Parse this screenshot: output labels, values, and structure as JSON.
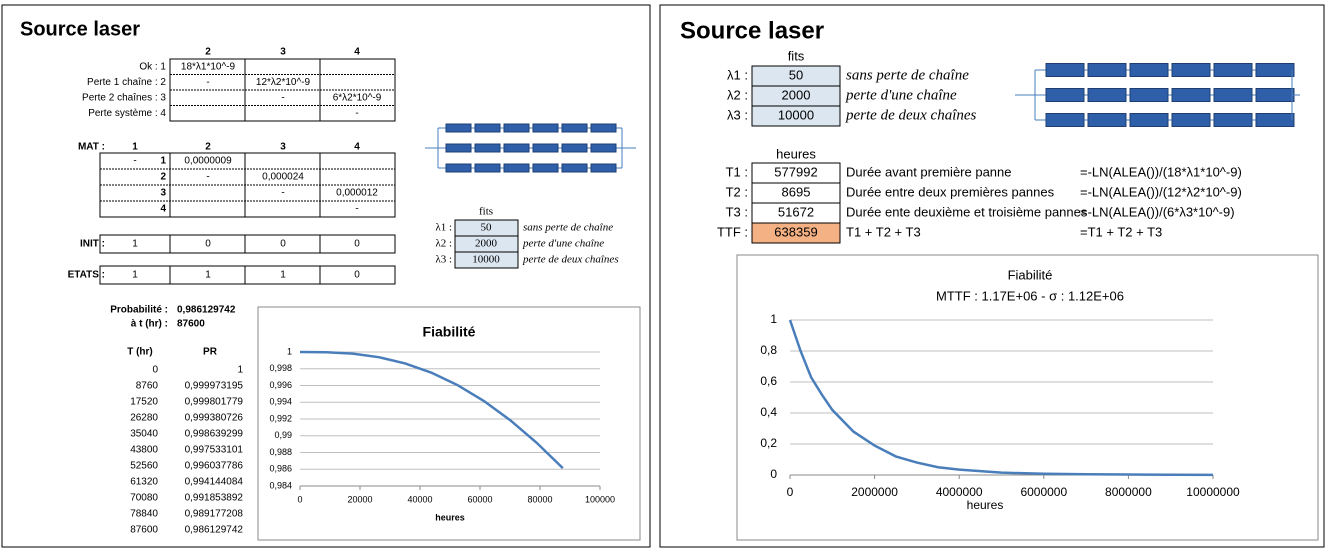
{
  "left": {
    "title": "Source laser",
    "transition": {
      "col_headers": [
        "2",
        "3",
        "4"
      ],
      "rows": [
        {
          "label": "Ok : 1",
          "2": "18*λ1*10^-9"
        },
        {
          "label": "Perte 1 chaîne : 2",
          "2": "-",
          "3": "12*λ2*10^-9"
        },
        {
          "label": "Perte 2 chaînes : 3",
          "3": "-",
          "4": "6*λ2*10^-9"
        },
        {
          "label": "Perte système : 4",
          "4": "-"
        }
      ]
    },
    "mat": {
      "label": "MAT :",
      "col_headers": [
        "1",
        "2",
        "3",
        "4"
      ],
      "rows": [
        {
          "label": "1",
          "1": "-",
          "2": "0,0000009"
        },
        {
          "label": "2",
          "2": "-",
          "3": "0,000024"
        },
        {
          "label": "3",
          "3": "-",
          "4": "0,000012"
        },
        {
          "label": "4",
          "4": "-"
        }
      ]
    },
    "init": {
      "label": "INIT :",
      "values": [
        1,
        0,
        0,
        0
      ]
    },
    "etats": {
      "label": "ETATS :",
      "values": [
        1,
        1,
        1,
        0
      ]
    },
    "fits": {
      "header": "fits",
      "rows": [
        {
          "label": "λ1 :",
          "value": 50,
          "desc": "sans perte de chaîne"
        },
        {
          "label": "λ2 :",
          "value": 2000,
          "desc": "perte d'une chaîne"
        },
        {
          "label": "λ3 :",
          "value": 10000,
          "desc": "perte de deux chaînes"
        }
      ]
    },
    "probability": {
      "label": "Probabilité :",
      "value": "0,986129742"
    },
    "time": {
      "label": "à t (hr) :",
      "value": 87600
    },
    "table": {
      "headers": [
        "T (hr)",
        "PR"
      ],
      "rows": [
        [
          0,
          1
        ],
        [
          8760,
          "0,999973195"
        ],
        [
          17520,
          "0,999801779"
        ],
        [
          26280,
          "0,999380726"
        ],
        [
          35040,
          "0,998639299"
        ],
        [
          43800,
          "0,997533101"
        ],
        [
          52560,
          "0,996037786"
        ],
        [
          61320,
          "0,994144084"
        ],
        [
          70080,
          "0,991853892"
        ],
        [
          78840,
          "0,989177208"
        ],
        [
          87600,
          "0,986129742"
        ]
      ]
    }
  },
  "right": {
    "title": "Source laser",
    "fits": {
      "header": "fits",
      "rows": [
        {
          "label": "λ1 :",
          "value": 50,
          "desc": "sans perte de chaîne"
        },
        {
          "label": "λ2 :",
          "value": 2000,
          "desc": "perte d'une chaîne"
        },
        {
          "label": "λ3 :",
          "value": 10000,
          "desc": "perte de deux chaînes"
        }
      ]
    },
    "hours": {
      "header": "heures",
      "rows": [
        {
          "label": "T1 :",
          "value": 577992,
          "desc": "Durée avant première panne",
          "formula": "=-LN(ALEA())/(18*λ1*10^-9)"
        },
        {
          "label": "T2 :",
          "value": 8695,
          "desc": "Durée entre deux premières pannes",
          "formula": "=-LN(ALEA())/(12*λ2*10^-9)"
        },
        {
          "label": "T3 :",
          "value": 51672,
          "desc": "Durée ente deuxième et troisième pannes",
          "formula": "=-LN(ALEA())/(6*λ3*10^-9)"
        },
        {
          "label": "TTF :",
          "value": 638359,
          "desc": "T1 + T2 + T3",
          "formula": "=T1 + T2 + T3"
        }
      ]
    }
  },
  "chart_data": [
    {
      "type": "line",
      "title": "Fiabilité",
      "x_label": "heures",
      "color": "#4a7ebb",
      "grid": true,
      "x": [
        0,
        8760,
        17520,
        26280,
        35040,
        43800,
        52560,
        61320,
        70080,
        78840,
        87600
      ],
      "values": [
        1,
        0.999973195,
        0.999801779,
        0.999380726,
        0.998639299,
        0.997533101,
        0.996037786,
        0.994144084,
        0.991853892,
        0.989177208,
        0.986129742
      ],
      "xlim": [
        0,
        100000
      ],
      "xticks": [
        0,
        20000,
        40000,
        60000,
        80000,
        100000
      ],
      "ylim": [
        0.984,
        1
      ],
      "yticks": [
        {
          "value": 0.984,
          "label": "0,984"
        },
        {
          "value": 0.986,
          "label": "0,986"
        },
        {
          "value": 0.988,
          "label": "0,988"
        },
        {
          "value": 0.99,
          "label": "0,99"
        },
        {
          "value": 0.992,
          "label": "0,992"
        },
        {
          "value": 0.994,
          "label": "0,994"
        },
        {
          "value": 0.996,
          "label": "0,996"
        },
        {
          "value": 0.998,
          "label": "0,998"
        },
        1
      ]
    },
    {
      "type": "line",
      "title": "Fiabilité",
      "subtitle": "MTTF : 1.17E+06  -  σ : 1.12E+06",
      "x_label": "heures",
      "color": "#4a7ebb",
      "grid": true,
      "x": [
        0,
        250000,
        500000,
        750000,
        1000000,
        1500000,
        2000000,
        2500000,
        3000000,
        3500000,
        4000000,
        5000000,
        6000000,
        7000000,
        8000000,
        9000000,
        10000000
      ],
      "values": [
        1,
        0.8,
        0.63,
        0.52,
        0.42,
        0.28,
        0.19,
        0.12,
        0.08,
        0.05,
        0.035,
        0.015,
        0.008,
        0.005,
        0.003,
        0.002,
        0.001
      ],
      "xlim": [
        0,
        10000000
      ],
      "xticks": [
        0,
        2000000,
        4000000,
        6000000,
        8000000,
        10000000
      ],
      "ylim": [
        0,
        1
      ],
      "yticks": [
        0,
        {
          "value": 0.2,
          "label": "0,2"
        },
        {
          "value": 0.4,
          "label": "0,4"
        },
        {
          "value": 0.6,
          "label": "0,6"
        },
        {
          "value": 0.8,
          "label": "0,8"
        },
        1
      ]
    }
  ]
}
